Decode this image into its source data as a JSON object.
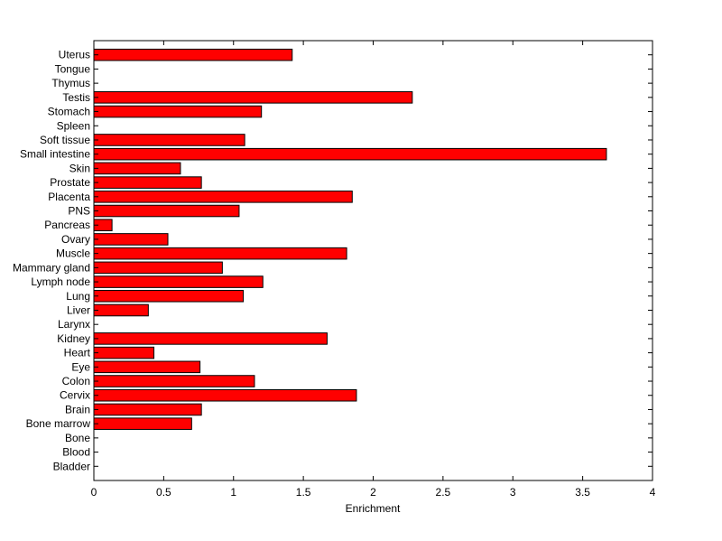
{
  "chart_data": {
    "type": "bar",
    "orientation": "horizontal",
    "title": "",
    "xlabel": "Enrichment",
    "ylabel": "",
    "xlim": [
      0,
      4
    ],
    "xticks": [
      0,
      0.5,
      1,
      1.5,
      2,
      2.5,
      3,
      3.5,
      4
    ],
    "xtick_labels": [
      "0",
      "0.5",
      "1",
      "1.5",
      "2",
      "2.5",
      "3",
      "3.5",
      "4"
    ],
    "grid": false,
    "legend": "none",
    "bar_color": "#ff0000",
    "bar_edge_color": "#000000",
    "categories": [
      "Bladder",
      "Blood",
      "Bone",
      "Bone marrow",
      "Brain",
      "Cervix",
      "Colon",
      "Eye",
      "Heart",
      "Kidney",
      "Larynx",
      "Liver",
      "Lung",
      "Lymph node",
      "Mammary gland",
      "Muscle",
      "Ovary",
      "Pancreas",
      "PNS",
      "Placenta",
      "Prostate",
      "Skin",
      "Small intestine",
      "Soft tissue",
      "Spleen",
      "Stomach",
      "Testis",
      "Thymus",
      "Tongue",
      "Uterus"
    ],
    "values": [
      0,
      0,
      0,
      0.7,
      0.77,
      1.88,
      1.15,
      0.76,
      0.43,
      1.67,
      0,
      0.39,
      1.07,
      1.21,
      0.92,
      1.81,
      0.53,
      0.13,
      1.04,
      1.85,
      0.77,
      0.62,
      3.67,
      1.08,
      0,
      1.2,
      2.28,
      0,
      0,
      1.42
    ]
  }
}
